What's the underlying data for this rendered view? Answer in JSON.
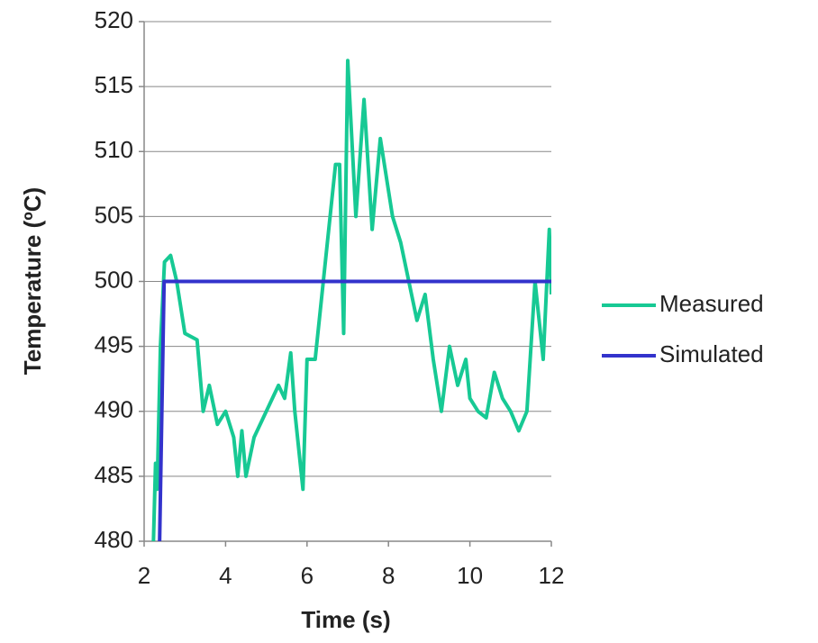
{
  "chart_data": {
    "type": "line",
    "xlabel": "Time (s)",
    "ylabel": "Temperature (ºC)",
    "xlim": [
      2,
      12
    ],
    "xticks": [
      2,
      4,
      6,
      8,
      10,
      12
    ],
    "ylim": [
      480,
      520
    ],
    "yticks": [
      480,
      485,
      490,
      495,
      500,
      505,
      510,
      515,
      520
    ],
    "grid": true,
    "legend": "right",
    "series": [
      {
        "name": "Measured",
        "color": "#17c994",
        "x": [
          2.22,
          2.28,
          2.32,
          2.4,
          2.5,
          2.65,
          2.8,
          3.0,
          3.3,
          3.45,
          3.6,
          3.8,
          4.0,
          4.2,
          4.3,
          4.4,
          4.5,
          4.7,
          5.0,
          5.3,
          5.45,
          5.6,
          5.7,
          5.9,
          6.0,
          6.2,
          6.4,
          6.5,
          6.7,
          6.8,
          6.9,
          7.0,
          7.2,
          7.4,
          7.6,
          7.8,
          8.1,
          8.3,
          8.5,
          8.7,
          8.9,
          9.1,
          9.3,
          9.5,
          9.7,
          9.9,
          10.0,
          10.2,
          10.4,
          10.6,
          10.8,
          11.0,
          11.2,
          11.4,
          11.6,
          11.8,
          11.95,
          12.0
        ],
        "values": [
          479,
          486,
          484,
          495,
          501.5,
          502,
          500,
          496,
          495.5,
          490,
          492,
          489,
          490,
          488,
          485,
          488.5,
          485,
          488,
          490,
          492,
          491,
          494.5,
          490,
          484,
          494,
          494,
          500,
          503,
          509,
          509,
          496,
          517,
          505,
          514,
          504,
          511,
          505,
          503,
          500,
          497,
          499,
          494,
          490,
          495,
          492,
          494,
          491,
          490,
          489.5,
          493,
          491,
          490,
          488.5,
          490,
          500,
          494,
          504,
          499
        ]
      },
      {
        "name": "Simulated",
        "color": "#3333cc",
        "x": [
          2.38,
          2.49,
          12
        ],
        "values": [
          480,
          500,
          500
        ]
      }
    ]
  }
}
